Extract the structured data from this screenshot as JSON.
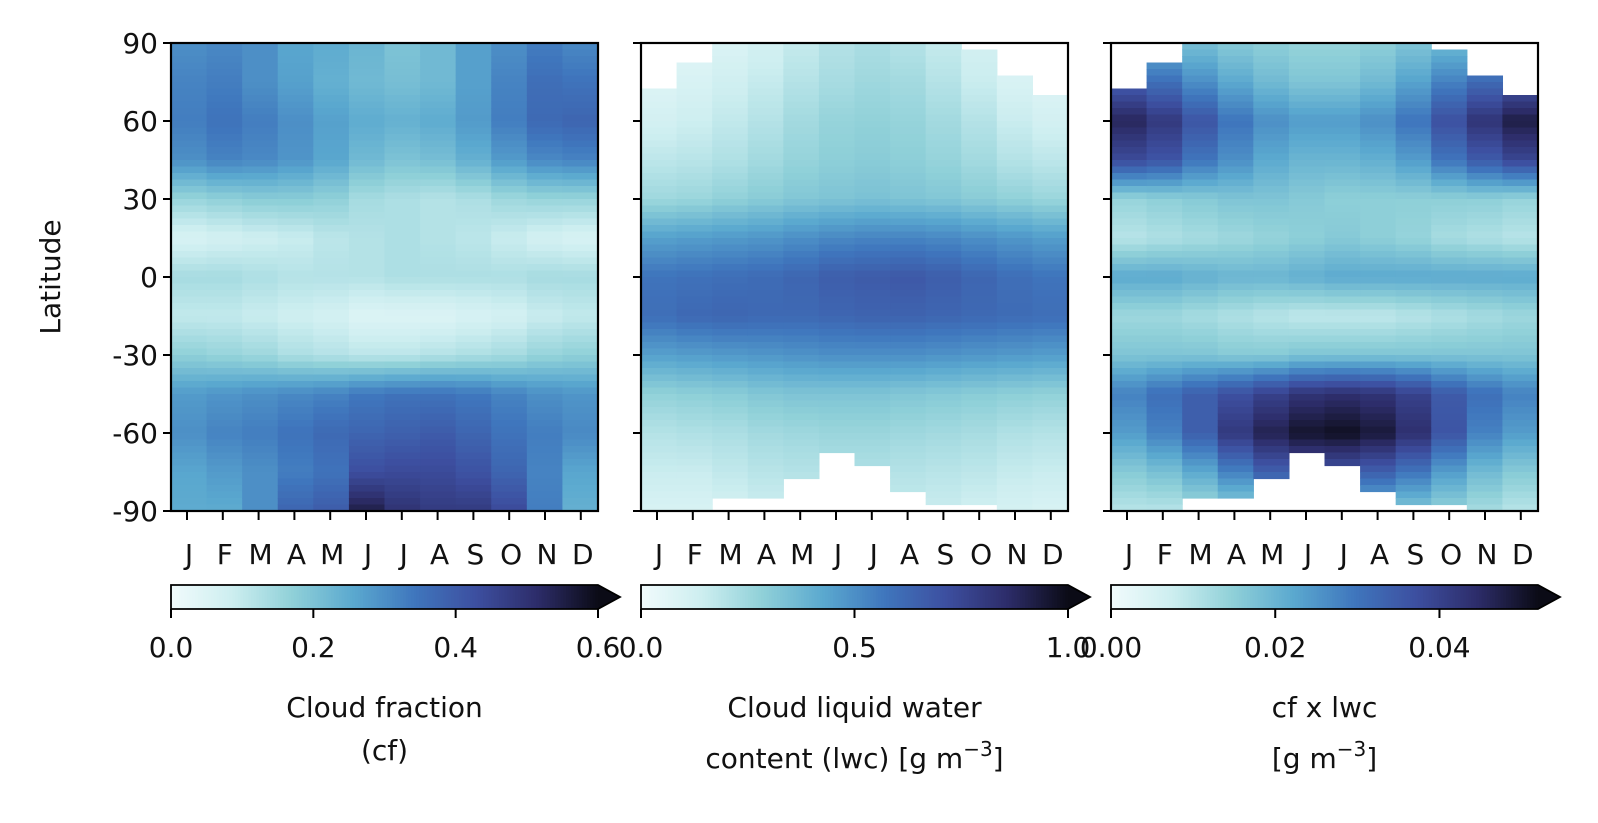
{
  "chart_data": [
    {
      "type": "heatmap",
      "ylabel": "Latitude",
      "y_ticks": [
        "90",
        "60",
        "30",
        "0",
        "-30",
        "-60",
        "-90"
      ],
      "ylim": [
        -90,
        90
      ],
      "x_ticks": [
        "J",
        "F",
        "M",
        "A",
        "M",
        "J",
        "J",
        "A",
        "S",
        "O",
        "N",
        "D"
      ],
      "colorbar": {
        "label": [
          "Cloud fraction",
          "(cf)"
        ],
        "range": [
          0,
          0.6
        ],
        "ticks": [
          0.0,
          0.2,
          0.4,
          0.6
        ],
        "tick_labels": [
          "0.0",
          "0.2",
          "0.4",
          "0.6"
        ],
        "extend": "max"
      },
      "colormap": [
        "#f1fbfc",
        "#cdeef0",
        "#8fd0d8",
        "#5aa8cf",
        "#3f76bd",
        "#3d4fa0",
        "#2d2d6a",
        "#0b0b16"
      ],
      "lat_profiles": {
        "lat": [
          -90,
          -75,
          -60,
          -45,
          -30,
          -15,
          0,
          15,
          30,
          45,
          60,
          75,
          90
        ],
        "values_by_month": [
          [
            0.25,
            0.26,
            0.3,
            0.28,
            0.17,
            0.1,
            0.14,
            0.06,
            0.16,
            0.3,
            0.33,
            0.32,
            0.3
          ],
          [
            0.25,
            0.28,
            0.32,
            0.29,
            0.16,
            0.1,
            0.14,
            0.07,
            0.17,
            0.32,
            0.35,
            0.33,
            0.31
          ],
          [
            0.3,
            0.3,
            0.33,
            0.3,
            0.15,
            0.09,
            0.13,
            0.08,
            0.18,
            0.31,
            0.33,
            0.3,
            0.3
          ],
          [
            0.38,
            0.33,
            0.35,
            0.31,
            0.13,
            0.08,
            0.12,
            0.09,
            0.18,
            0.29,
            0.3,
            0.27,
            0.26
          ],
          [
            0.4,
            0.35,
            0.37,
            0.32,
            0.12,
            0.07,
            0.12,
            0.11,
            0.17,
            0.26,
            0.27,
            0.24,
            0.25
          ],
          [
            0.55,
            0.43,
            0.38,
            0.34,
            0.11,
            0.05,
            0.12,
            0.12,
            0.14,
            0.22,
            0.25,
            0.22,
            0.23
          ],
          [
            0.5,
            0.44,
            0.39,
            0.35,
            0.11,
            0.05,
            0.13,
            0.13,
            0.13,
            0.2,
            0.24,
            0.21,
            0.2
          ],
          [
            0.48,
            0.44,
            0.4,
            0.35,
            0.12,
            0.05,
            0.13,
            0.12,
            0.12,
            0.21,
            0.25,
            0.22,
            0.22
          ],
          [
            0.48,
            0.42,
            0.38,
            0.34,
            0.13,
            0.06,
            0.13,
            0.11,
            0.13,
            0.24,
            0.28,
            0.27,
            0.27
          ],
          [
            0.44,
            0.38,
            0.35,
            0.32,
            0.14,
            0.07,
            0.13,
            0.09,
            0.15,
            0.28,
            0.33,
            0.32,
            0.3
          ],
          [
            0.33,
            0.32,
            0.33,
            0.3,
            0.16,
            0.09,
            0.14,
            0.07,
            0.16,
            0.31,
            0.37,
            0.36,
            0.33
          ],
          [
            0.24,
            0.26,
            0.31,
            0.29,
            0.17,
            0.1,
            0.14,
            0.06,
            0.16,
            0.32,
            0.38,
            0.35,
            0.31
          ]
        ]
      }
    },
    {
      "type": "heatmap",
      "y_ticks": [
        "90",
        "60",
        "30",
        "0",
        "-30",
        "-60",
        "-90"
      ],
      "ylim": [
        -90,
        90
      ],
      "x_ticks": [
        "J",
        "F",
        "M",
        "A",
        "M",
        "J",
        "J",
        "A",
        "S",
        "O",
        "N",
        "D"
      ],
      "colorbar": {
        "label": [
          "Cloud liquid water",
          "content (lwc) [g m",
          "−3",
          "]"
        ],
        "range": [
          0,
          1.0
        ],
        "ticks": [
          0.0,
          0.5,
          1.0
        ],
        "tick_labels": [
          "0.0",
          "0.5",
          "1.0"
        ],
        "extend": "max"
      },
      "colormap": [
        "#f1fbfc",
        "#cdeef0",
        "#8fd0d8",
        "#5aa8cf",
        "#3f76bd",
        "#3d4fa0",
        "#2d2d6a",
        "#0b0b16"
      ],
      "lat_profiles": {
        "lat": [
          -90,
          -75,
          -60,
          -45,
          -30,
          -15,
          0,
          15,
          30,
          45,
          60,
          75,
          90
        ],
        "values_by_month": [
          [
            0.1,
            0.15,
            0.2,
            0.28,
            0.45,
            0.6,
            0.58,
            0.45,
            0.25,
            0.18,
            0.12,
            0.08,
            0.06
          ],
          [
            0.1,
            0.15,
            0.21,
            0.29,
            0.46,
            0.62,
            0.59,
            0.46,
            0.26,
            0.19,
            0.14,
            0.1,
            0.07
          ],
          [
            0.12,
            0.17,
            0.22,
            0.3,
            0.47,
            0.63,
            0.6,
            0.47,
            0.28,
            0.21,
            0.17,
            0.13,
            0.09
          ],
          [
            0.14,
            0.19,
            0.24,
            0.32,
            0.48,
            0.62,
            0.61,
            0.48,
            0.3,
            0.24,
            0.2,
            0.16,
            0.12
          ],
          [
            0.16,
            0.2,
            0.25,
            0.33,
            0.49,
            0.62,
            0.63,
            0.5,
            0.32,
            0.27,
            0.24,
            0.2,
            0.16
          ],
          [
            0.17,
            0.21,
            0.26,
            0.33,
            0.5,
            0.63,
            0.66,
            0.52,
            0.33,
            0.29,
            0.27,
            0.23,
            0.2
          ],
          [
            0.17,
            0.21,
            0.26,
            0.33,
            0.5,
            0.64,
            0.67,
            0.53,
            0.34,
            0.3,
            0.28,
            0.25,
            0.22
          ],
          [
            0.16,
            0.2,
            0.25,
            0.32,
            0.5,
            0.64,
            0.68,
            0.53,
            0.33,
            0.29,
            0.27,
            0.24,
            0.2
          ],
          [
            0.15,
            0.19,
            0.24,
            0.31,
            0.49,
            0.63,
            0.66,
            0.52,
            0.32,
            0.27,
            0.24,
            0.2,
            0.16
          ],
          [
            0.13,
            0.18,
            0.23,
            0.3,
            0.48,
            0.62,
            0.63,
            0.5,
            0.3,
            0.24,
            0.2,
            0.15,
            0.12
          ],
          [
            0.11,
            0.16,
            0.21,
            0.29,
            0.47,
            0.61,
            0.6,
            0.48,
            0.28,
            0.2,
            0.15,
            0.1,
            0.08
          ],
          [
            0.1,
            0.15,
            0.2,
            0.28,
            0.46,
            0.6,
            0.58,
            0.46,
            0.26,
            0.18,
            0.12,
            0.08,
            0.06
          ]
        ]
      },
      "missing_regions": {
        "top_lat_by_month": [
          73,
          83,
          90,
          90,
          90,
          90,
          90,
          90,
          90,
          87,
          77,
          70
        ],
        "bottom_lat_by_month": [
          -90,
          -90,
          -86,
          -85,
          -77,
          -68,
          -72,
          -82,
          -88,
          -88,
          -90,
          -90
        ]
      }
    },
    {
      "type": "heatmap",
      "y_ticks": [
        "90",
        "60",
        "30",
        "0",
        "-30",
        "-60",
        "-90"
      ],
      "ylim": [
        -90,
        90
      ],
      "x_ticks": [
        "J",
        "F",
        "M",
        "A",
        "M",
        "J",
        "J",
        "A",
        "S",
        "O",
        "N",
        "D"
      ],
      "colorbar": {
        "label": [
          "cf x lwc",
          "[g m",
          "−3",
          "]"
        ],
        "range": [
          0,
          0.052
        ],
        "ticks": [
          0.0,
          0.02,
          0.04
        ],
        "tick_labels": [
          "0.00",
          "0.02",
          "0.04"
        ],
        "extend": "max"
      },
      "colormap": [
        "#f1fbfc",
        "#cdeef0",
        "#8fd0d8",
        "#5aa8cf",
        "#3f76bd",
        "#3d4fa0",
        "#2d2d6a",
        "#0b0b16"
      ],
      "lat_profiles": {
        "lat": [
          -90,
          -75,
          -60,
          -45,
          -30,
          -15,
          0,
          15,
          30,
          45,
          60,
          75,
          90
        ],
        "values_by_month": [
          [
            0.01,
            0.016,
            0.024,
            0.028,
            0.017,
            0.013,
            0.022,
            0.01,
            0.014,
            0.038,
            0.046,
            0.034,
            0.022
          ],
          [
            0.01,
            0.018,
            0.028,
            0.031,
            0.017,
            0.013,
            0.022,
            0.011,
            0.015,
            0.036,
            0.042,
            0.031,
            0.02
          ],
          [
            0.012,
            0.022,
            0.034,
            0.034,
            0.017,
            0.012,
            0.021,
            0.012,
            0.016,
            0.03,
            0.036,
            0.026,
            0.018
          ],
          [
            0.014,
            0.028,
            0.042,
            0.037,
            0.016,
            0.011,
            0.02,
            0.013,
            0.017,
            0.026,
            0.03,
            0.022,
            0.016
          ],
          [
            0.018,
            0.034,
            0.047,
            0.04,
            0.016,
            0.01,
            0.02,
            0.014,
            0.017,
            0.022,
            0.026,
            0.019,
            0.015
          ],
          [
            0.02,
            0.036,
            0.05,
            0.043,
            0.017,
            0.009,
            0.021,
            0.015,
            0.016,
            0.02,
            0.024,
            0.017,
            0.014
          ],
          [
            0.02,
            0.036,
            0.051,
            0.044,
            0.017,
            0.009,
            0.022,
            0.016,
            0.015,
            0.02,
            0.024,
            0.017,
            0.014
          ],
          [
            0.018,
            0.034,
            0.049,
            0.043,
            0.017,
            0.009,
            0.022,
            0.015,
            0.015,
            0.021,
            0.026,
            0.019,
            0.015
          ],
          [
            0.016,
            0.03,
            0.044,
            0.04,
            0.017,
            0.01,
            0.022,
            0.014,
            0.015,
            0.024,
            0.03,
            0.023,
            0.017
          ],
          [
            0.014,
            0.024,
            0.036,
            0.035,
            0.017,
            0.011,
            0.022,
            0.012,
            0.015,
            0.03,
            0.037,
            0.028,
            0.019
          ],
          [
            0.012,
            0.019,
            0.028,
            0.031,
            0.017,
            0.012,
            0.022,
            0.011,
            0.015,
            0.035,
            0.043,
            0.032,
            0.021
          ],
          [
            0.01,
            0.016,
            0.024,
            0.028,
            0.017,
            0.013,
            0.022,
            0.01,
            0.014,
            0.039,
            0.048,
            0.035,
            0.022
          ]
        ]
      },
      "missing_regions": {
        "top_lat_by_month": [
          73,
          83,
          90,
          90,
          90,
          90,
          90,
          90,
          90,
          87,
          77,
          70
        ],
        "bottom_lat_by_month": [
          -90,
          -90,
          -86,
          -85,
          -77,
          -68,
          -72,
          -82,
          -88,
          -88,
          -90,
          -90
        ]
      }
    }
  ]
}
